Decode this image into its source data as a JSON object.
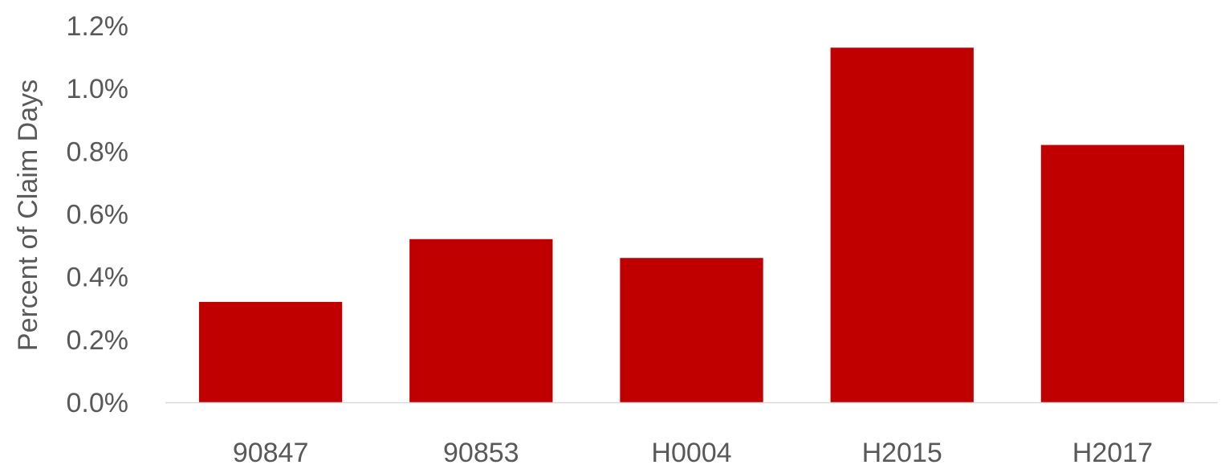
{
  "chart_data": {
    "type": "bar",
    "categories": [
      "90847",
      "90853",
      "H0004",
      "H2015",
      "H2017"
    ],
    "values": [
      0.32,
      0.52,
      0.46,
      1.13,
      0.82
    ],
    "ylabel": "Percent of Claim Days",
    "xlabel": "",
    "ylim": [
      0,
      1.2
    ],
    "y_ticks": [
      "0.0%",
      "0.2%",
      "0.4%",
      "0.6%",
      "0.8%",
      "1.0%",
      "1.2%"
    ],
    "y_tick_values": [
      0,
      0.2,
      0.4,
      0.6,
      0.8,
      1.0,
      1.2
    ],
    "grid": false,
    "legend": "none",
    "bar_color": "#c00000",
    "axis_color": "#d9d9d9",
    "text_color": "#595959"
  }
}
